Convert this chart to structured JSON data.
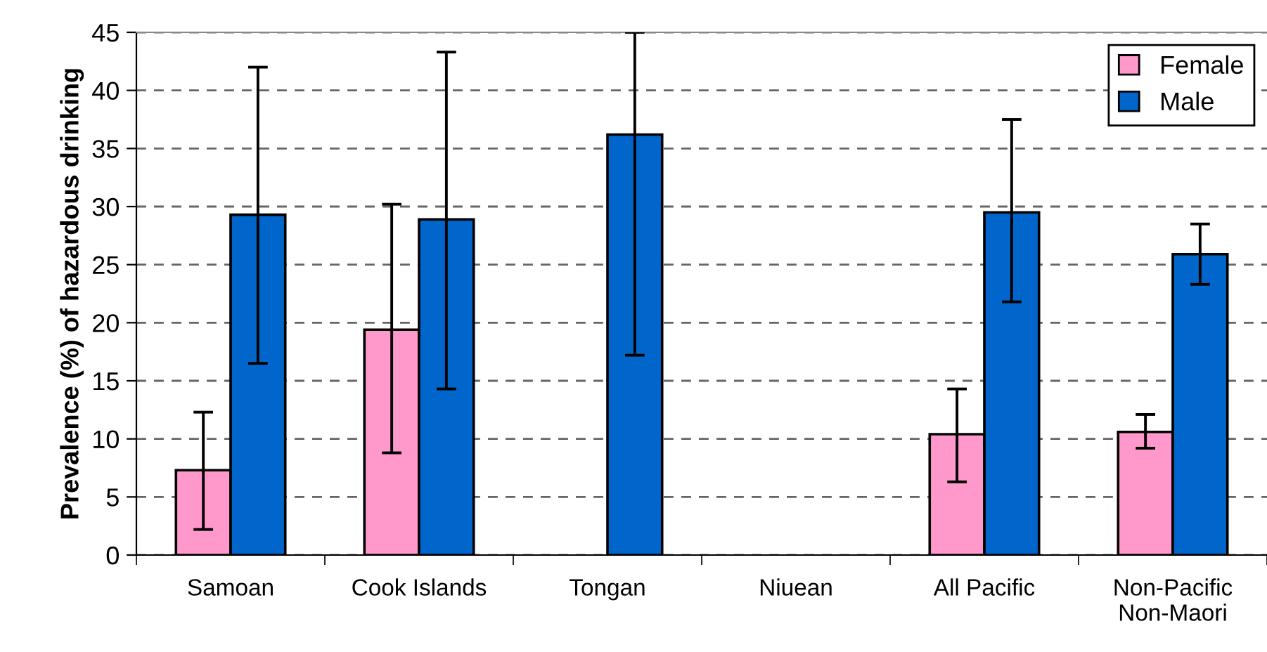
{
  "chart_data": {
    "type": "bar",
    "ylabel": "Prevalence (%) of hazardous drinking",
    "categories": [
      "Samoan",
      "Cook Islands",
      "Tongan",
      "Niuean",
      "All Pacific",
      "Non-Pacific\nNon-Maori"
    ],
    "series": [
      {
        "name": "Female",
        "color": "#ff99cc",
        "values": [
          7.3,
          19.4,
          null,
          null,
          10.4,
          10.6
        ],
        "errors": [
          [
            2.2,
            12.3
          ],
          [
            8.8,
            30.2
          ],
          null,
          null,
          [
            6.3,
            14.3
          ],
          [
            9.2,
            12.1
          ]
        ]
      },
      {
        "name": "Male",
        "color": "#0066cc",
        "values": [
          29.3,
          28.9,
          36.2,
          null,
          29.5,
          25.9
        ],
        "errors": [
          [
            16.5,
            42.0
          ],
          [
            14.3,
            43.3
          ],
          [
            17.2,
            45
          ],
          null,
          [
            21.8,
            37.5
          ],
          [
            23.3,
            28.5
          ]
        ]
      }
    ],
    "ylim": [
      0,
      45
    ],
    "yticks": [
      0,
      5,
      10,
      15,
      20,
      25,
      30,
      35,
      40,
      45
    ],
    "grid": "y",
    "legend": "top right"
  }
}
